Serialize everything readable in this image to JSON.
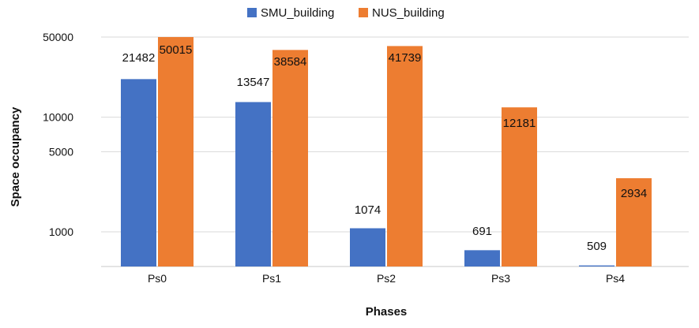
{
  "chart_data": {
    "type": "bar",
    "title": "",
    "xlabel": "Phases",
    "ylabel": "Space occupancy",
    "y_scale": "log",
    "ylim": [
      500,
      50000
    ],
    "y_ticks": [
      1000,
      5000,
      10000,
      50000
    ],
    "y_tick_labels": [
      "1000",
      "5000",
      "10000",
      "50000"
    ],
    "grid": true,
    "legend_position": "top-center",
    "categories": [
      "Ps0",
      "Ps1",
      "Ps2",
      "Ps3",
      "Ps4"
    ],
    "series": [
      {
        "name": "SMU_building",
        "color": "#4472c4",
        "values": [
          21482,
          13547,
          1074,
          691,
          509
        ],
        "labels": [
          "21482",
          "13547",
          "1074",
          "691",
          "509"
        ]
      },
      {
        "name": "NUS_building",
        "color": "#ed7d31",
        "values": [
          50015,
          38584,
          41739,
          12181,
          2934
        ],
        "labels": [
          "50015",
          "38584",
          "41739",
          "12181",
          "2934"
        ]
      }
    ]
  }
}
